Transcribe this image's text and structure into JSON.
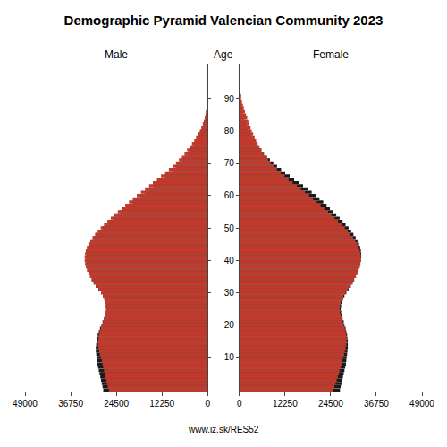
{
  "title": "Demographic Pyramid Valencian Community 2023",
  "y_label": "Age",
  "annotations": [
    "www.iz.sk/RES52"
  ],
  "chart_data": [
    {
      "type": "bar",
      "orientation": "horizontal",
      "title": "Male",
      "grid": false,
      "tick_labels": "x",
      "y": [
        0,
        1,
        2,
        3,
        4,
        5,
        6,
        7,
        8,
        9,
        10,
        11,
        12,
        13,
        14,
        15,
        16,
        17,
        18,
        19,
        20,
        21,
        22,
        23,
        24,
        25,
        26,
        27,
        28,
        29,
        30,
        31,
        32,
        33,
        34,
        35,
        36,
        37,
        38,
        39,
        40,
        41,
        42,
        43,
        44,
        45,
        46,
        47,
        48,
        49,
        50,
        51,
        52,
        53,
        54,
        55,
        56,
        57,
        58,
        59,
        60,
        61,
        62,
        63,
        64,
        65,
        66,
        67,
        68,
        69,
        70,
        71,
        72,
        73,
        74,
        75,
        76,
        77,
        78,
        79,
        80,
        81,
        82,
        83,
        84,
        85,
        86,
        87,
        88,
        89,
        90,
        91,
        92,
        93,
        94,
        95,
        96,
        97,
        98,
        99
      ],
      "xlim": [
        49000,
        0
      ],
      "xticks": [
        0,
        12250,
        24500,
        36750,
        49000
      ],
      "ylim": [
        -0.5,
        100.5
      ],
      "yticks": [
        10,
        20,
        30,
        40,
        50,
        60,
        70,
        80,
        90
      ],
      "series": [
        {
          "color": "#1a1a1a",
          "values": [
            28000,
            28200,
            28400,
            28600,
            28800,
            29000,
            29200,
            29400,
            29600,
            29700,
            29800,
            29900,
            30000,
            30000,
            29900,
            29800,
            29700,
            29500,
            29200,
            28900,
            28500,
            28200,
            27800,
            27500,
            27200,
            27100,
            27200,
            27400,
            27700,
            28100,
            28600,
            29300,
            30000,
            30600,
            31100,
            31500,
            31900,
            32200,
            32400,
            32600,
            32700,
            32700,
            32600,
            32400,
            32100,
            31700,
            31200,
            30600,
            29900,
            29100,
            28200,
            27300,
            26400,
            25400,
            24400,
            23400,
            22300,
            21200,
            20100,
            19000,
            17900,
            16800,
            15700,
            14600,
            13600,
            12500,
            11400,
            10400,
            9400,
            8500,
            7700,
            6900,
            6200,
            5500,
            4900,
            4300,
            3700,
            3200,
            2700,
            2300,
            1900,
            1500,
            1200,
            950,
            730,
            540,
            380,
            260,
            165,
            100,
            57,
            31,
            16,
            8,
            3,
            1,
            0,
            0,
            0,
            0
          ]
        },
        {
          "color": "#c0392b",
          "values": [
            26500,
            26800,
            27000,
            27200,
            27400,
            27600,
            27800,
            28000,
            28200,
            28400,
            28600,
            28900,
            29100,
            29300,
            29400,
            29400,
            29300,
            29200,
            29000,
            28700,
            28400,
            28100,
            27800,
            27600,
            27400,
            27300,
            27400,
            27500,
            27700,
            28100,
            28600,
            29200,
            29900,
            30500,
            31100,
            31600,
            32000,
            32400,
            32700,
            32900,
            33000,
            33000,
            32900,
            32700,
            32400,
            32000,
            31500,
            30900,
            30200,
            29500,
            28700,
            27800,
            26900,
            26000,
            25100,
            24100,
            23100,
            22100,
            21100,
            20100,
            19000,
            17900,
            16800,
            15700,
            14700,
            13600,
            12500,
            11400,
            10400,
            9400,
            8500,
            7700,
            6900,
            6200,
            5500,
            4800,
            4200,
            3600,
            3100,
            2600,
            2100,
            1700,
            1300,
            1000,
            780,
            580,
            420,
            290,
            190,
            115,
            68,
            39,
            21,
            11,
            5,
            3,
            1,
            1,
            0,
            0
          ]
        }
      ]
    },
    {
      "type": "bar",
      "orientation": "horizontal",
      "title": "Female",
      "grid": false,
      "y": [
        0,
        1,
        2,
        3,
        4,
        5,
        6,
        7,
        8,
        9,
        10,
        11,
        12,
        13,
        14,
        15,
        16,
        17,
        18,
        19,
        20,
        21,
        22,
        23,
        24,
        25,
        26,
        27,
        28,
        29,
        30,
        31,
        32,
        33,
        34,
        35,
        36,
        37,
        38,
        39,
        40,
        41,
        42,
        43,
        44,
        45,
        46,
        47,
        48,
        49,
        50,
        51,
        52,
        53,
        54,
        55,
        56,
        57,
        58,
        59,
        60,
        61,
        62,
        63,
        64,
        65,
        66,
        67,
        68,
        69,
        70,
        71,
        72,
        73,
        74,
        75,
        76,
        77,
        78,
        79,
        80,
        81,
        82,
        83,
        84,
        85,
        86,
        87,
        88,
        89,
        90,
        91,
        92,
        93,
        94,
        95,
        96,
        97,
        98,
        99
      ],
      "xlim": [
        0,
        49000
      ],
      "xticks": [
        0,
        12250,
        24500,
        36750,
        49000
      ],
      "ylim": [
        -0.5,
        100.5
      ],
      "yticks": [
        10,
        20,
        30,
        40,
        50,
        60,
        70,
        80,
        90
      ],
      "series": [
        {
          "color": "#1a1a1a",
          "values": [
            27000,
            27200,
            27400,
            27600,
            27800,
            28000,
            28200,
            28400,
            28600,
            28700,
            28800,
            28900,
            29000,
            29100,
            29100,
            29100,
            29000,
            28900,
            28700,
            28500,
            28200,
            28000,
            27700,
            27500,
            27300,
            27200,
            27300,
            27500,
            27800,
            28200,
            28700,
            29300,
            29900,
            30400,
            30800,
            31200,
            31600,
            31900,
            32200,
            32400,
            32600,
            32700,
            32700,
            32600,
            32400,
            32100,
            31700,
            31200,
            30600,
            30000,
            29300,
            28500,
            27700,
            26900,
            26000,
            25200,
            24300,
            23400,
            22500,
            21500,
            20500,
            19400,
            18300,
            17100,
            15900,
            14700,
            13500,
            12300,
            11200,
            10100,
            9100,
            8200,
            7400,
            6600,
            5900,
            5200,
            4600,
            4000,
            3500,
            3000,
            2600,
            2200,
            1900,
            1600,
            1300,
            1100,
            900,
            700,
            530,
            370,
            240,
            150,
            90,
            52,
            28,
            14,
            7,
            3,
            1,
            0
          ]
        },
        {
          "color": "#c0392b",
          "values": [
            25200,
            25500,
            25800,
            26100,
            26400,
            26700,
            26900,
            27200,
            27400,
            27600,
            27800,
            28100,
            28300,
            28500,
            28700,
            28800,
            28800,
            28700,
            28500,
            28300,
            28000,
            27700,
            27400,
            27200,
            27000,
            26900,
            27000,
            27200,
            27500,
            27900,
            28500,
            29100,
            29700,
            30300,
            30800,
            31300,
            31700,
            32000,
            32300,
            32500,
            32600,
            32600,
            32500,
            32300,
            32000,
            31600,
            31100,
            30500,
            29800,
            29100,
            28300,
            27400,
            26500,
            25600,
            24700,
            23800,
            22800,
            21800,
            20800,
            19800,
            18700,
            17600,
            16500,
            15400,
            14300,
            13200,
            12100,
            11100,
            10100,
            9200,
            8400,
            7700,
            7100,
            6500,
            5900,
            5400,
            4900,
            4500,
            4100,
            3700,
            3300,
            3000,
            2700,
            2400,
            2100,
            1800,
            1500,
            1200,
            950,
            700,
            490,
            330,
            210,
            125,
            70,
            37,
            18,
            8,
            3,
            1
          ]
        }
      ]
    }
  ]
}
